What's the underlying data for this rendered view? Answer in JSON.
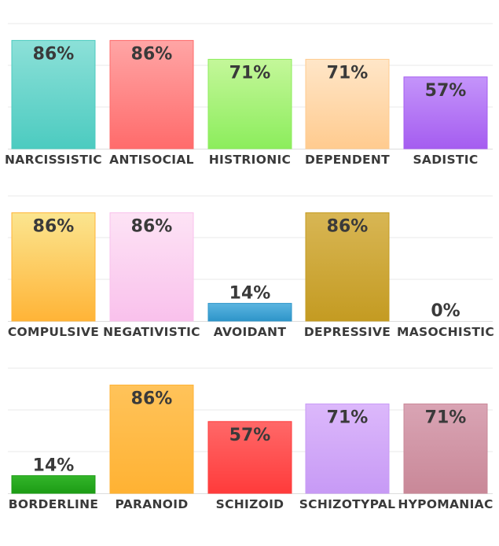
{
  "chart_data": [
    {
      "type": "bar",
      "categories": [
        "NARCISSISTIC",
        "ANTISOCIAL",
        "HISTRIONIC",
        "DEPENDENT",
        "SADISTIC"
      ],
      "values": [
        86,
        86,
        71,
        71,
        57
      ],
      "labels": [
        "86%",
        "86%",
        "71%",
        "71%",
        "57%"
      ],
      "ylim": [
        0,
        100
      ],
      "grid": true,
      "colors": [
        [
          "#8ce0d8",
          "#4ccbc0"
        ],
        [
          "#ffa5a5",
          "#ff6b6b"
        ],
        [
          "#c4f79a",
          "#8ced5c"
        ],
        [
          "#ffe6c8",
          "#ffcb8f"
        ],
        [
          "#c494fa",
          "#a55df0"
        ]
      ]
    },
    {
      "type": "bar",
      "categories": [
        "COMPULSIVE",
        "NEGATIVISTIC",
        "AVOIDANT",
        "DEPRESSIVE",
        "MASOCHISTIC"
      ],
      "values": [
        86,
        86,
        14,
        86,
        0
      ],
      "labels": [
        "86%",
        "86%",
        "14%",
        "86%",
        "0%"
      ],
      "ylim": [
        0,
        100
      ],
      "grid": true,
      "colors": [
        [
          "#fbe58f",
          "#ffb437"
        ],
        [
          "#fde3f5",
          "#f9c1ec"
        ],
        [
          "#5bb5e0",
          "#2e95c9"
        ],
        [
          "#d8b654",
          "#c49b22"
        ],
        [
          "#cccccc",
          "#bbbbbb"
        ]
      ]
    },
    {
      "type": "bar",
      "categories": [
        "BORDERLINE",
        "PARANOID",
        "SCHIZOID",
        "SCHIZOTYPAL",
        "HYPOMANIAC"
      ],
      "values": [
        14,
        86,
        57,
        71,
        71
      ],
      "labels": [
        "14%",
        "86%",
        "57%",
        "71%",
        "71%"
      ],
      "ylim": [
        0,
        100
      ],
      "grid": true,
      "colors": [
        [
          "#33b52a",
          "#1d9c15"
        ],
        [
          "#ffc35a",
          "#ffb233"
        ],
        [
          "#ff6868",
          "#ff3b3b"
        ],
        [
          "#dcb8fb",
          "#c79af5"
        ],
        [
          "#d9a4b4",
          "#c98898"
        ]
      ]
    }
  ]
}
